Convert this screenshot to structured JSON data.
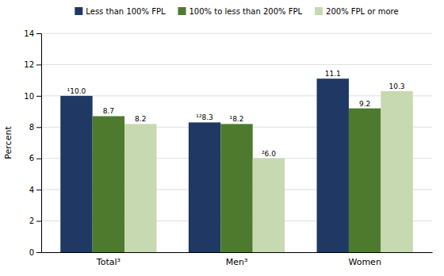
{
  "chart_data": {
    "type": "bar",
    "categories": [
      "Total³",
      "Men³",
      "Women"
    ],
    "series": [
      {
        "name": "Less than 100% FPL",
        "color": "#1f3864",
        "values": [
          10.0,
          8.3,
          11.1
        ],
        "value_labels": [
          "¹10.0",
          "¹²8.3",
          "11.1"
        ]
      },
      {
        "name": "100% to less than 200% FPL",
        "color": "#4e7a2e",
        "values": [
          8.7,
          8.2,
          9.2
        ],
        "value_labels": [
          "8.7",
          "¹8.2",
          "9.2"
        ]
      },
      {
        "name": "200% FPL or more",
        "color": "#c6d9b0",
        "values": [
          8.2,
          6.0,
          10.3
        ],
        "value_labels": [
          "8.2",
          "²6.0",
          "10.3"
        ]
      }
    ],
    "ylabel": "Percent",
    "ylim": [
      0,
      14
    ],
    "yticks": [
      0,
      2,
      4,
      6,
      8,
      10,
      12,
      14
    ],
    "grid": true,
    "legend": "top",
    "data_labels": true
  }
}
